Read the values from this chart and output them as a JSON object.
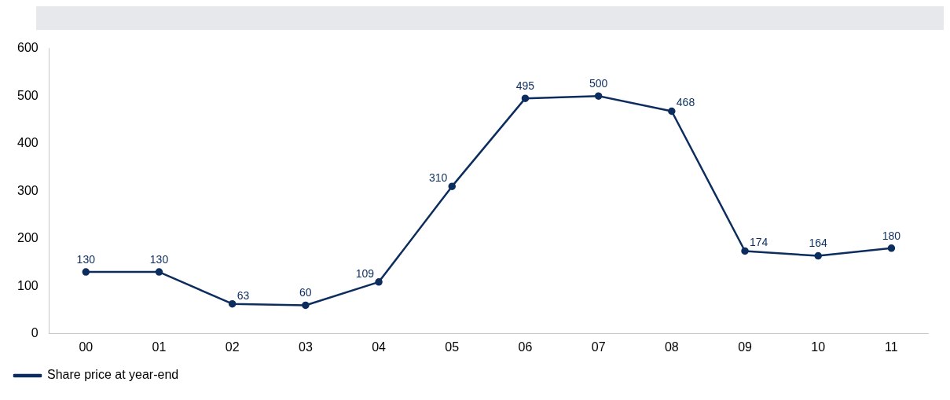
{
  "chart_data": {
    "type": "line",
    "categories": [
      "00",
      "01",
      "02",
      "03",
      "04",
      "05",
      "06",
      "07",
      "08",
      "09",
      "10",
      "11"
    ],
    "series": [
      {
        "name": "Share price at year-end",
        "color": "#0c2d5e",
        "values": [
          130,
          130,
          63,
          60,
          109,
          310,
          495,
          500,
          468,
          174,
          164,
          180
        ]
      }
    ],
    "ylim": [
      0,
      600
    ],
    "yticks": [
      0,
      100,
      200,
      300,
      400,
      500,
      600
    ],
    "grid": false,
    "legend": "bottom left",
    "marker": "circle",
    "line_style": "solid",
    "data_labels": true
  }
}
